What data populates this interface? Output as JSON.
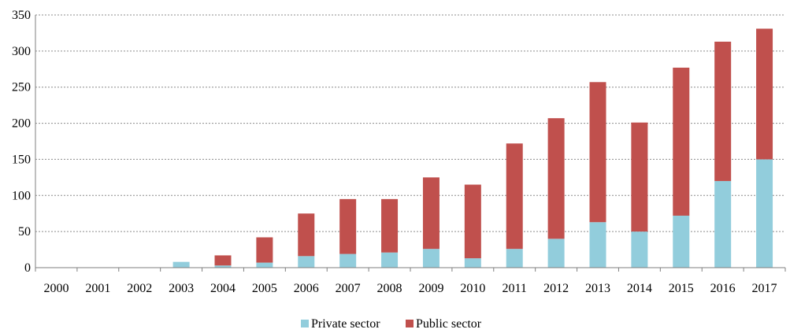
{
  "chart_data": {
    "type": "bar",
    "stacked": true,
    "categories": [
      "2000",
      "2001",
      "2002",
      "2003",
      "2004",
      "2005",
      "2006",
      "2007",
      "2008",
      "2009",
      "2010",
      "2011",
      "2012",
      "2013",
      "2014",
      "2015",
      "2016",
      "2017"
    ],
    "series": [
      {
        "name": "Private sector",
        "color": "#92CDDC",
        "values": [
          0,
          0,
          0,
          8,
          3,
          7,
          16,
          19,
          21,
          26,
          13,
          26,
          40,
          63,
          50,
          72,
          120,
          150
        ]
      },
      {
        "name": "Public sector",
        "color": "#C0504D",
        "values": [
          0,
          0,
          0,
          0,
          14,
          35,
          59,
          76,
          74,
          99,
          102,
          146,
          167,
          194,
          151,
          205,
          193,
          181
        ]
      }
    ],
    "ylim": [
      0,
      350
    ],
    "yticks": [
      0,
      50,
      100,
      150,
      200,
      250,
      300,
      350
    ],
    "grid": true,
    "legend_position": "bottom"
  }
}
